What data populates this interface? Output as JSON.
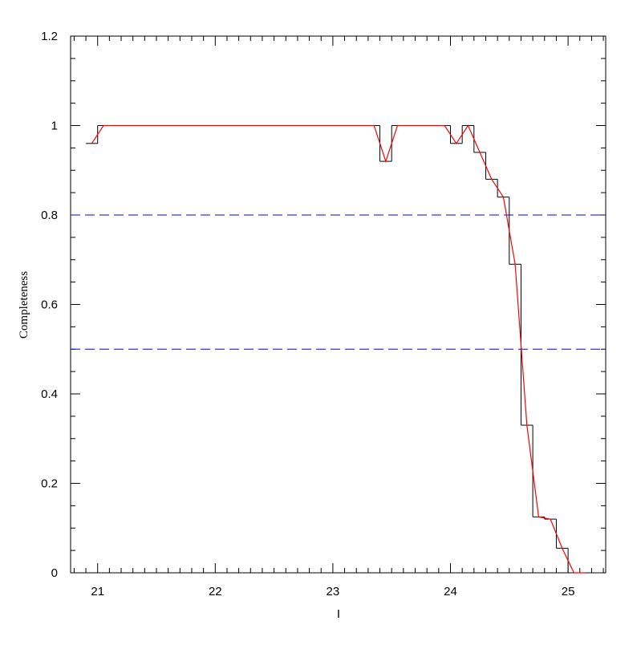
{
  "chart_data": {
    "type": "histogram",
    "xlabel": "I",
    "ylabel": "Completeness",
    "bins": [
      20.9,
      21.0,
      21.1,
      21.2,
      21.3,
      21.4,
      21.5,
      21.6,
      21.7,
      21.8,
      21.9,
      22.0,
      22.1,
      22.2,
      22.3,
      22.4,
      22.5,
      22.6,
      22.7,
      22.8,
      22.9,
      23.0,
      23.1,
      23.2,
      23.3,
      23.4,
      23.5,
      23.6,
      23.7,
      23.8,
      23.9,
      24.0,
      24.1,
      24.2,
      24.3,
      24.4,
      24.5,
      24.6,
      24.7,
      24.8,
      24.9,
      25.0,
      25.1,
      25.2
    ],
    "counts": [
      0.96,
      1,
      1,
      1,
      1,
      1,
      1,
      1,
      1,
      1,
      1,
      1,
      1,
      1,
      1,
      1,
      1,
      1,
      1,
      1,
      1,
      1,
      1,
      1,
      1,
      0.92,
      1,
      1,
      1,
      1,
      1,
      0.96,
      1,
      0.94,
      0.88,
      0.84,
      0.69,
      0.33,
      0.125,
      0.12,
      0.055,
      0,
      0
    ],
    "color": "#000000",
    "fit": {
      "color": "#ff0000",
      "x": [
        20.95,
        21.05,
        21.15,
        21.25,
        21.35,
        21.45,
        21.55,
        21.65,
        21.75,
        21.85,
        21.95,
        22.05,
        22.15,
        22.25,
        22.35,
        22.45,
        22.55,
        22.65,
        22.75,
        22.85,
        22.95,
        23.05,
        23.15,
        23.25,
        23.35,
        23.45,
        23.55,
        23.65,
        23.75,
        23.85,
        23.95,
        24.05,
        24.15,
        24.25,
        24.35,
        24.45,
        24.55,
        24.65,
        24.75,
        24.85,
        24.95,
        25.05,
        25.15
      ],
      "values": [
        0.96,
        1,
        1,
        1,
        1,
        1,
        1,
        1,
        1,
        1,
        1,
        1,
        1,
        1,
        1,
        1,
        1,
        1,
        1,
        1,
        1,
        1,
        1,
        1,
        1,
        0.92,
        1,
        1,
        1,
        1,
        1,
        0.96,
        1,
        0.94,
        0.88,
        0.84,
        0.69,
        0.33,
        0.125,
        0.12,
        0.055,
        0,
        0
      ]
    },
    "hlines": [
      0.8,
      0.5
    ],
    "hline_color": "#0000ff",
    "xlim": [
      20.77,
      25.32
    ],
    "ylim": [
      0,
      1.2
    ],
    "xticks": [
      21,
      22,
      23,
      24,
      25
    ],
    "yticks": [
      0,
      0.2,
      0.4,
      0.6,
      0.8,
      1,
      1.2
    ],
    "xminorticks": [
      20.8,
      20.9,
      21.1,
      21.2,
      21.3,
      21.4,
      21.5,
      21.6,
      21.7,
      21.8,
      21.9,
      22.1,
      22.2,
      22.3,
      22.4,
      22.5,
      22.6,
      22.7,
      22.8,
      22.9,
      23.1,
      23.2,
      23.3,
      23.4,
      23.5,
      23.6,
      23.7,
      23.8,
      23.9,
      24.1,
      24.2,
      24.3,
      24.4,
      24.5,
      24.6,
      24.7,
      24.8,
      24.9,
      25.1,
      25.2,
      25.3
    ],
    "yminorticks": [
      0.05,
      0.1,
      0.15,
      0.25,
      0.3,
      0.35,
      0.45,
      0.5,
      0.55,
      0.65,
      0.7,
      0.75,
      0.85,
      0.9,
      0.95,
      1.05,
      1.1,
      1.15
    ]
  }
}
